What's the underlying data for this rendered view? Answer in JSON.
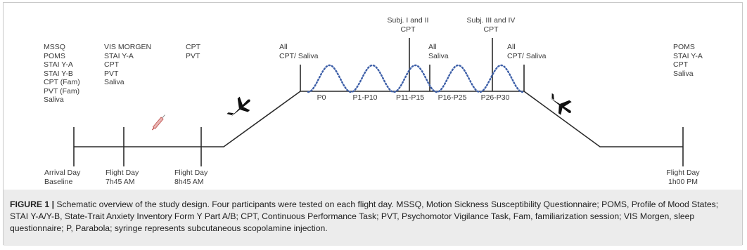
{
  "timeline": {
    "stage_labels": [
      {
        "id": "baseline",
        "lines": [
          "MSSQ",
          "POMS",
          "STAI Y-A",
          "STAI Y-B",
          "CPT (Fam)",
          "PVT (Fam)",
          "Saliva"
        ]
      },
      {
        "id": "pre1",
        "lines": [
          "VIS MORGEN",
          "STAI Y-A",
          "CPT",
          "PVT",
          "Saliva"
        ]
      },
      {
        "id": "pre2",
        "lines": [
          "CPT",
          "PVT"
        ]
      },
      {
        "id": "start",
        "lines": [
          "All",
          "CPT/ Saliva"
        ]
      },
      {
        "id": "mid1",
        "lines": [
          "Subj. I and II",
          "CPT"
        ]
      },
      {
        "id": "mid2",
        "lines": [
          "All",
          "Saliva"
        ]
      },
      {
        "id": "mid3",
        "lines": [
          "Subj. III and IV",
          "CPT"
        ]
      },
      {
        "id": "end",
        "lines": [
          "All",
          "CPT/ Saliva"
        ]
      },
      {
        "id": "post",
        "lines": [
          "POMS",
          "STAI Y-A",
          "CPT",
          "Saliva"
        ]
      }
    ],
    "parabola_labels": [
      "P0",
      "P1-P10",
      "P11-P15",
      "P16-P25",
      "P26-P30"
    ],
    "day_labels": [
      {
        "id": "arrival",
        "lines": [
          "Arrival Day",
          "Baseline"
        ]
      },
      {
        "id": "flight1",
        "lines": [
          "Flight Day",
          "7h45 AM"
        ]
      },
      {
        "id": "flight2",
        "lines": [
          "Flight Day",
          "8h45 AM"
        ]
      },
      {
        "id": "flight3",
        "lines": [
          "Flight Day",
          "1h00 PM"
        ]
      }
    ],
    "icons": [
      "syringe-icon",
      "airplane-ascending-icon",
      "airplane-descending-icon"
    ]
  },
  "caption": {
    "figure_label": "FIGURE 1 |",
    "text": " Schematic overview of the study design. Four participants were tested on each flight day. MSSQ, Motion Sickness Susceptibility Questionnaire; POMS, Profile of Mood States; STAI Y-A/Y-B, State-Trait Anxiety Inventory Form Y Part A/B; CPT, Continuous Performance Task; PVT, Psychomotor Vigilance Task, Fam, familiarization session; VIS Morgen, sleep questionnaire; P, Parabola; syringe represents subcutaneous scopolamine injection."
  },
  "colors": {
    "line": "#2a2a2a",
    "parabola": "#3d5fa8",
    "syringe": "#c0504d",
    "caption_band": "#ececec"
  }
}
